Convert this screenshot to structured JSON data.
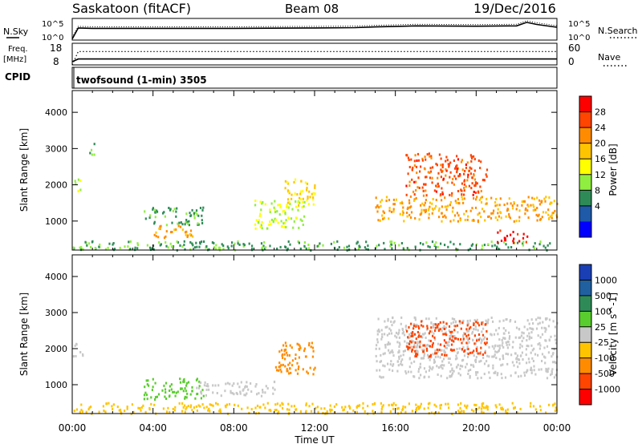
{
  "header": {
    "station": "Saskatoon (fitACF)",
    "beam": "Beam 08",
    "date": "19/Dec/2016"
  },
  "noise_panel": {
    "left_label": "N.Sky",
    "left_ticks": [
      "10^5",
      "10^0"
    ],
    "right_ticks": [
      "10^5",
      "10^0"
    ],
    "right_label": "N.Search"
  },
  "freq_panel": {
    "left_label_1": "Freq.",
    "left_label_2": "[MHz]",
    "left_ticks": [
      "18",
      "8"
    ],
    "right_ticks": [
      "60",
      "0"
    ],
    "right_label": "Nave"
  },
  "cpid_panel": {
    "left_label": "CPID",
    "program": "twofsound (1-min) 3505"
  },
  "axes": {
    "ylabel": "Slant Range [km]",
    "xlabel": "Time UT",
    "yticks": [
      "4000",
      "3000",
      "2000",
      "1000"
    ],
    "xticks": [
      "00:00",
      "04:00",
      "08:00",
      "12:00",
      "16:00",
      "20:00",
      "00:00"
    ]
  },
  "colorbars": {
    "power": {
      "title": "Power [dB]",
      "ticks": [
        "28",
        "24",
        "20",
        "16",
        "12",
        "8",
        "4"
      ],
      "colors": [
        "#ff0000",
        "#ff4500",
        "#ff8c00",
        "#ffc400",
        "#ffff00",
        "#90ee40",
        "#2e8b57",
        "#1e5aa8",
        "#0000ff"
      ]
    },
    "velocity": {
      "title": "Velocity [m s^-1]",
      "ticks": [
        "1000",
        "500",
        "100",
        "25",
        "-25",
        "-100",
        "-500",
        "-1000"
      ],
      "colors": [
        "#1a3fb5",
        "#2060a0",
        "#2e8b57",
        "#5acd2e",
        "#c8c8c8",
        "#ffc400",
        "#ff8c00",
        "#ff4500",
        "#ff0000"
      ]
    }
  },
  "chart_data": [
    {
      "type": "line",
      "title": "Saskatoon (fitACF)",
      "series": [
        {
          "name": "N.Sky",
          "x": [
            0,
            0.3,
            1,
            4,
            8,
            12,
            14,
            15,
            17,
            20,
            22,
            22.5,
            23,
            24
          ],
          "y": [
            0.1,
            3.2,
            3.1,
            3.1,
            3.1,
            3.2,
            3.3,
            3.5,
            3.8,
            3.7,
            3.8,
            4.8,
            4.2,
            3.4
          ]
        }
      ],
      "xlim": [
        0,
        24
      ],
      "grid": false
    },
    {
      "type": "line",
      "series": [
        {
          "name": "Freq.",
          "x": [
            0,
            0.3,
            24
          ],
          "y": [
            8,
            10,
            10
          ]
        },
        {
          "name": "Nave",
          "x": [
            0,
            0.3,
            24
          ],
          "y": [
            0,
            40,
            40
          ]
        }
      ],
      "xlim": [
        0,
        24
      ],
      "grid": false
    },
    {
      "type": "heatmap",
      "title": "Beam 08",
      "xlabel": "Time UT",
      "ylabel": "Slant Range [km]",
      "xlim": [
        0,
        24
      ],
      "ylim": [
        200,
        4600
      ],
      "colorbar": "Power [dB]",
      "regions": [
        {
          "t0": 0,
          "t1": 24,
          "r0": 200,
          "r1": 450,
          "value": 8
        },
        {
          "t0": 0.1,
          "t1": 0.5,
          "r0": 1800,
          "r1": 2200,
          "value": 12
        },
        {
          "t0": 0.8,
          "t1": 1.1,
          "r0": 2800,
          "r1": 3200,
          "value": 8
        },
        {
          "t0": 3.5,
          "t1": 6.5,
          "r0": 900,
          "r1": 1400,
          "value": 8
        },
        {
          "t0": 4,
          "t1": 6,
          "r0": 550,
          "r1": 900,
          "value": 20
        },
        {
          "t0": 9,
          "t1": 11.5,
          "r0": 800,
          "r1": 1600,
          "value": 12
        },
        {
          "t0": 10.5,
          "t1": 12,
          "r0": 1400,
          "r1": 2200,
          "value": 16
        },
        {
          "t0": 15,
          "t1": 24,
          "r0": 1000,
          "r1": 1700,
          "value": 20
        },
        {
          "t0": 16.5,
          "t1": 20.5,
          "r0": 1700,
          "r1": 2900,
          "value": 24
        },
        {
          "t0": 21,
          "t1": 22.5,
          "r0": 400,
          "r1": 750,
          "value": 28
        }
      ]
    },
    {
      "type": "heatmap",
      "xlabel": "Time UT",
      "ylabel": "Slant Range [km]",
      "xlim": [
        0,
        24
      ],
      "ylim": [
        200,
        4600
      ],
      "colorbar": "Velocity [m s^-1]",
      "regions": [
        {
          "t0": 0,
          "t1": 24,
          "r0": 200,
          "r1": 500,
          "value": -50
        },
        {
          "t0": 0,
          "t1": 0.5,
          "r0": 1800,
          "r1": 2200,
          "value": 0
        },
        {
          "t0": 3.5,
          "t1": 6.5,
          "r0": 600,
          "r1": 1200,
          "value": 60
        },
        {
          "t0": 6,
          "t1": 10,
          "r0": 700,
          "r1": 1100,
          "value": 0
        },
        {
          "t0": 10,
          "t1": 12,
          "r0": 1300,
          "r1": 2200,
          "value": -300
        },
        {
          "t0": 15,
          "t1": 24,
          "r0": 1200,
          "r1": 2900,
          "value": 0
        },
        {
          "t0": 16.5,
          "t1": 20.5,
          "r0": 1800,
          "r1": 2800,
          "value": -700
        }
      ]
    }
  ]
}
